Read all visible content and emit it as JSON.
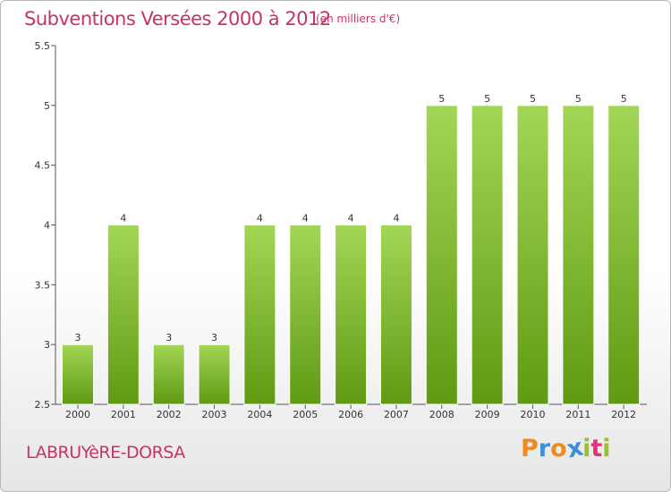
{
  "title": "Subventions Versées 2000 à 2012",
  "subtitle": "(en milliers d'€)",
  "town": "LABRUYèRE-DORSA",
  "logo": {
    "letters": [
      "P",
      "r",
      "o",
      "x",
      "i",
      "t",
      "i"
    ],
    "colors": [
      "#f08a1c",
      "#3d8fd6",
      "#f08a1c",
      "#3d8fd6",
      "#9bc12a",
      "#e0337a",
      "#9bc12a"
    ]
  },
  "colors": {
    "bar_top": "#a3d656",
    "bar_bottom": "#5f9a12",
    "text_accent": "#c8326a"
  },
  "chart_data": {
    "type": "bar",
    "title": "Subventions Versées 2000 à 2012",
    "subtitle": "(en milliers d'€)",
    "xlabel": "",
    "ylabel": "",
    "categories": [
      "2000",
      "2001",
      "2002",
      "2003",
      "2004",
      "2005",
      "2006",
      "2007",
      "2008",
      "2009",
      "2010",
      "2011",
      "2012"
    ],
    "values": [
      3,
      4,
      3,
      3,
      4,
      4,
      4,
      4,
      5,
      5,
      5,
      5,
      5
    ],
    "data_labels": [
      "3",
      "4",
      "3",
      "3",
      "4",
      "4",
      "4",
      "4",
      "5",
      "5",
      "5",
      "5",
      "5"
    ],
    "yticks": [
      2.5,
      3,
      3.5,
      4,
      4.5,
      5,
      5.5
    ],
    "ytick_labels": [
      "2.5",
      "3",
      "3.5",
      "4",
      "4.5",
      "5",
      "5.5"
    ],
    "ylim": [
      2.5,
      5.5
    ],
    "grid": false,
    "legend": "none"
  }
}
